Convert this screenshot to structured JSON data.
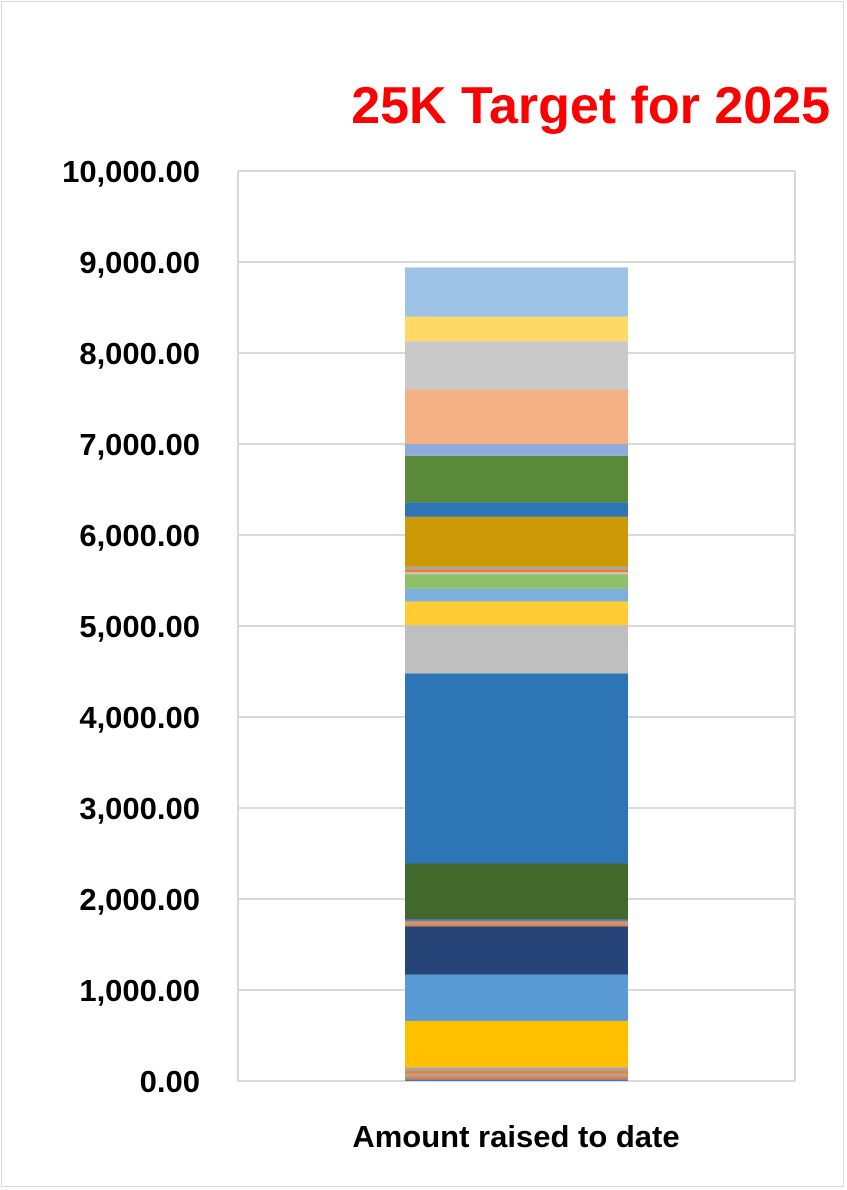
{
  "chart_data": {
    "type": "bar",
    "stacked": true,
    "title": "25K Target for 2025",
    "xlabel": "",
    "ylabel": "",
    "categories": [
      "Amount raised to date"
    ],
    "ylim": [
      0,
      10000
    ],
    "y_ticks": [
      "0.00",
      "1,000.00",
      "2,000.00",
      "3,000.00",
      "4,000.00",
      "5,000.00",
      "6,000.00",
      "7,000.00",
      "8,000.00",
      "9,000.00",
      "10,000.00"
    ],
    "y_tick_values": [
      0,
      1000,
      2000,
      3000,
      4000,
      5000,
      6000,
      7000,
      8000,
      9000,
      10000
    ],
    "grid": true,
    "legend": "none",
    "segments": [
      {
        "value": 20,
        "color": "#4472c4"
      },
      {
        "value": 30,
        "color": "#ed7d31"
      },
      {
        "value": 30,
        "color": "#a5a5a5"
      },
      {
        "value": 30,
        "color": "#ed7d31"
      },
      {
        "value": 40,
        "color": "#a5a5a5"
      },
      {
        "value": 510,
        "color": "#ffc000"
      },
      {
        "value": 510,
        "color": "#5b9bd5"
      },
      {
        "value": 530,
        "color": "#264478"
      },
      {
        "value": 20,
        "color": "#ed7d31"
      },
      {
        "value": 20,
        "color": "#a5a5a5"
      },
      {
        "value": 20,
        "color": "#ed7d31"
      },
      {
        "value": 20,
        "color": "#4472c4"
      },
      {
        "value": 610,
        "color": "#43682b"
      },
      {
        "value": 2090,
        "color": "#2e75b6"
      },
      {
        "value": 530,
        "color": "#bfbfbf"
      },
      {
        "value": 260,
        "color": "#ffcd33"
      },
      {
        "value": 140,
        "color": "#7cafdd"
      },
      {
        "value": 160,
        "color": "#8cc168"
      },
      {
        "value": 20,
        "color": "#c9c9c9"
      },
      {
        "value": 30,
        "color": "#ed7d31"
      },
      {
        "value": 30,
        "color": "#a5a5a5"
      },
      {
        "value": 550,
        "color": "#cc9a06"
      },
      {
        "value": 160,
        "color": "#2e75b6"
      },
      {
        "value": 510,
        "color": "#5a8a39"
      },
      {
        "value": 130,
        "color": "#8faadc"
      },
      {
        "value": 600,
        "color": "#f4b183"
      },
      {
        "value": 530,
        "color": "#c9c9c9"
      },
      {
        "value": 270,
        "color": "#ffd966"
      },
      {
        "value": 540,
        "color": "#9dc3e6"
      }
    ],
    "total": 8950
  }
}
